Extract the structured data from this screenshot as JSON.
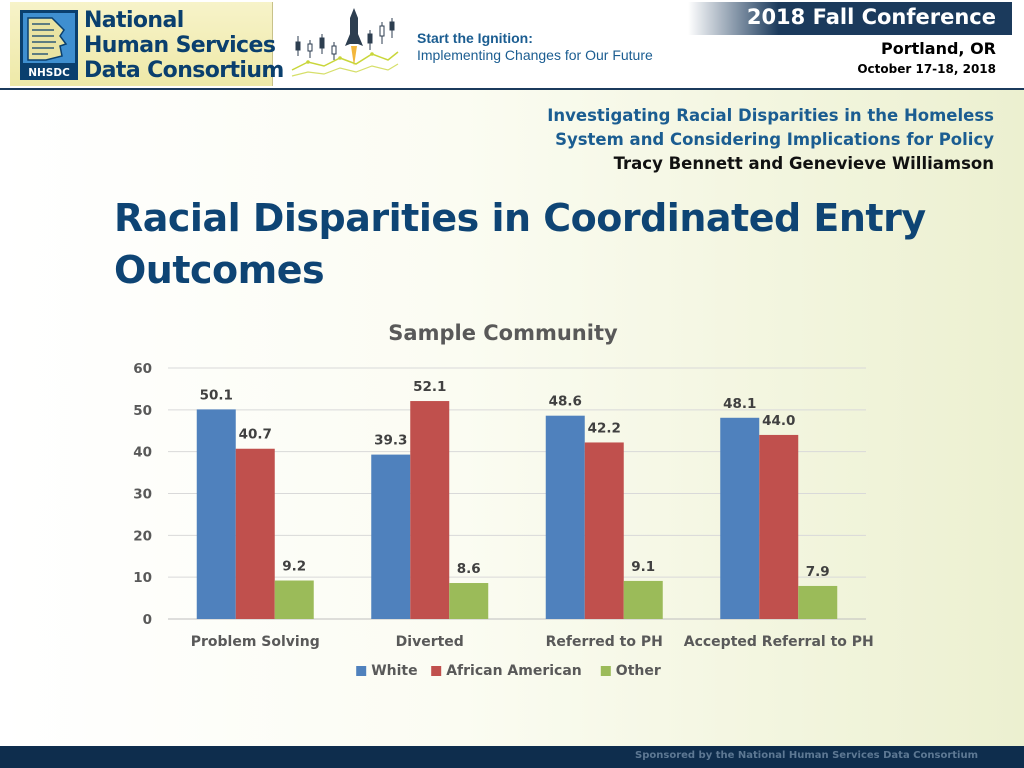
{
  "header": {
    "logo": {
      "line1": "National",
      "line2": "Human Services",
      "line3": "Data Consortium",
      "mark_text": "NHSDC"
    },
    "tagline_line1": "Start the Ignition:",
    "tagline_line2": "Implementing Changes for Our Future",
    "conference_title": "2018 Fall Conference",
    "city": "Portland, OR",
    "dates": "October 17-18, 2018"
  },
  "deck": {
    "title_line1": "Investigating Racial Disparities in the Homeless",
    "title_line2": "System and Considering Implications for Policy",
    "authors": "Tracy Bennett and Genevieve Williamson"
  },
  "slide": {
    "title_line1": "Racial Disparities in Coordinated Entry",
    "title_line2": "Outcomes"
  },
  "chart_data": {
    "type": "bar",
    "title": "Sample Community",
    "categories": [
      "Problem Solving",
      "Diverted",
      "Referred to PH",
      "Accepted Referral to PH"
    ],
    "series": [
      {
        "name": "White",
        "color": "#4f81bd",
        "values": [
          50.1,
          39.3,
          48.6,
          48.1
        ]
      },
      {
        "name": "African American",
        "color": "#c0504d",
        "values": [
          40.7,
          52.1,
          42.2,
          44.0
        ]
      },
      {
        "name": "Other",
        "color": "#9bbb59",
        "values": [
          9.2,
          8.6,
          9.1,
          7.9
        ]
      }
    ],
    "ylim": [
      0,
      60
    ],
    "yticks": [
      0,
      10,
      20,
      30,
      40,
      50,
      60
    ],
    "grid": true,
    "legend": "bottom",
    "data_labels": true,
    "label_decimals": 1
  },
  "footer": {
    "sponsor_text": "Sponsored by the National Human Services Data Consortium"
  }
}
